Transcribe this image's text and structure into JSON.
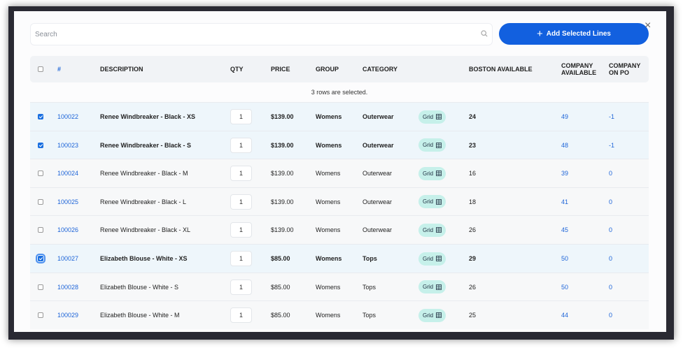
{
  "search": {
    "placeholder": "Search"
  },
  "add_button": "Add Selected Lines",
  "close": "×",
  "headers": {
    "num": "#",
    "description": "DESCRIPTION",
    "qty": "QTY",
    "price": "PRICE",
    "group": "GROUP",
    "category": "CATEGORY",
    "boston": "BOSTON AVAILABLE",
    "company_available": "COMPANY AVAILABLE",
    "company_on_po": "COMPANY ON PO"
  },
  "selection_note": "3 rows are selected.",
  "accent_color": "#1260df",
  "rows": [
    {
      "selected": true,
      "num": "100022",
      "description": "Renee Windbreaker - Black - XS",
      "qty": "1",
      "price": "$139.00",
      "group": "Womens",
      "category": "Outerwear",
      "badge": "Grid",
      "boston": "24",
      "company_available": "49",
      "company_on_po": "-1"
    },
    {
      "selected": true,
      "num": "100023",
      "description": "Renee Windbreaker - Black - S",
      "qty": "1",
      "price": "$139.00",
      "group": "Womens",
      "category": "Outerwear",
      "badge": "Grid",
      "boston": "23",
      "company_available": "48",
      "company_on_po": "-1"
    },
    {
      "selected": false,
      "num": "100024",
      "description": "Renee Windbreaker - Black - M",
      "qty": "1",
      "price": "$139.00",
      "group": "Womens",
      "category": "Outerwear",
      "badge": "Grid",
      "boston": "16",
      "company_available": "39",
      "company_on_po": "0"
    },
    {
      "selected": false,
      "num": "100025",
      "description": "Renee Windbreaker - Black - L",
      "qty": "1",
      "price": "$139.00",
      "group": "Womens",
      "category": "Outerwear",
      "badge": "Grid",
      "boston": "18",
      "company_available": "41",
      "company_on_po": "0"
    },
    {
      "selected": false,
      "num": "100026",
      "description": "Renee Windbreaker - Black - XL",
      "qty": "1",
      "price": "$139.00",
      "group": "Womens",
      "category": "Outerwear",
      "badge": "Grid",
      "boston": "26",
      "company_available": "45",
      "company_on_po": "0"
    },
    {
      "selected": true,
      "num": "100027",
      "description": "Elizabeth Blouse - White - XS",
      "qty": "1",
      "price": "$85.00",
      "group": "Womens",
      "category": "Tops",
      "badge": "Grid",
      "boston": "29",
      "company_available": "50",
      "company_on_po": "0"
    },
    {
      "selected": false,
      "num": "100028",
      "description": "Elizabeth Blouse - White - S",
      "qty": "1",
      "price": "$85.00",
      "group": "Womens",
      "category": "Tops",
      "badge": "Grid",
      "boston": "26",
      "company_available": "50",
      "company_on_po": "0"
    },
    {
      "selected": false,
      "num": "100029",
      "description": "Elizabeth Blouse - White - M",
      "qty": "1",
      "price": "$85.00",
      "group": "Womens",
      "category": "Tops",
      "badge": "Grid",
      "boston": "25",
      "company_available": "44",
      "company_on_po": "0"
    }
  ]
}
